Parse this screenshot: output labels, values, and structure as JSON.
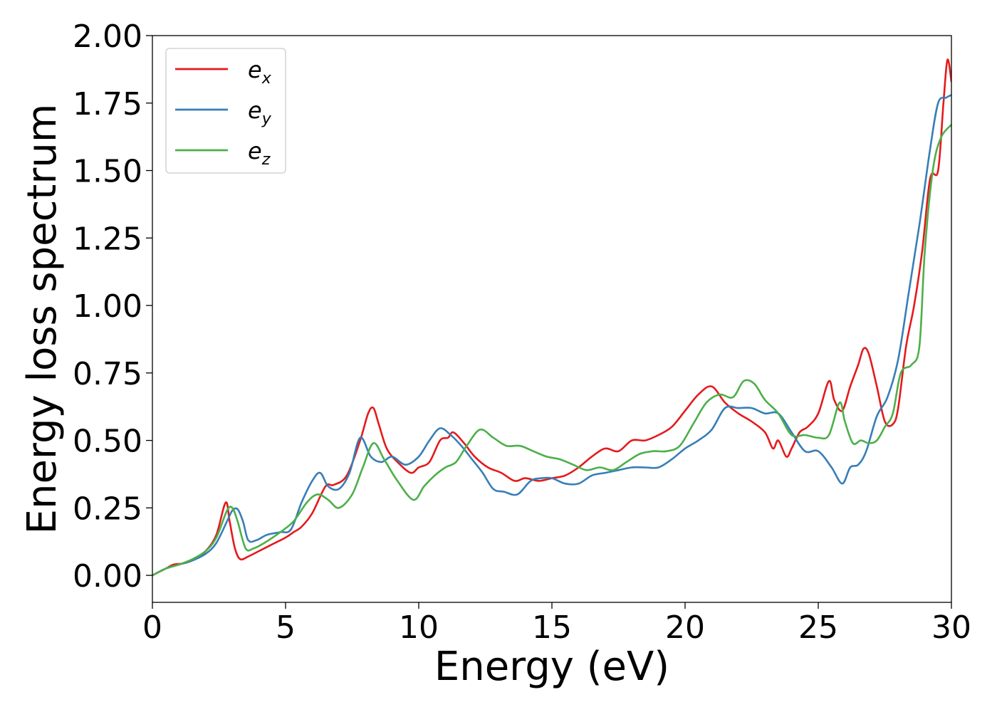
{
  "chart_data": {
    "type": "line",
    "xlabel": "Energy (eV)",
    "ylabel": "Energy loss spectrum",
    "xlim": [
      0,
      30
    ],
    "ylim": [
      -0.1,
      2.0
    ],
    "xticks": [
      0,
      5,
      10,
      15,
      20,
      25,
      30
    ],
    "xtick_labels": [
      "0",
      "5",
      "10",
      "15",
      "20",
      "25",
      "30"
    ],
    "yticks": [
      0,
      0.25,
      0.5,
      0.75,
      1.0,
      1.25,
      1.5,
      1.75,
      2.0
    ],
    "ytick_labels": [
      "0.00",
      "0.25",
      "0.50",
      "0.75",
      "1.00",
      "1.25",
      "1.50",
      "1.75",
      "2.00"
    ],
    "grid": false,
    "legend_position": "top-left",
    "series": [
      {
        "name": "e_x",
        "legend_main": "e",
        "legend_sub": "x",
        "color": "#e41a1c",
        "x": [
          0,
          0.5,
          0.8,
          1.2,
          1.6,
          2.0,
          2.4,
          2.75,
          2.9,
          3.1,
          3.3,
          3.6,
          4.0,
          4.6,
          5.0,
          5.3,
          5.6,
          6.0,
          6.5,
          6.8,
          7.3,
          7.8,
          8.1,
          8.3,
          8.5,
          8.8,
          9.2,
          9.7,
          10.0,
          10.4,
          10.8,
          11.1,
          11.3,
          11.7,
          12.1,
          12.6,
          13.1,
          13.6,
          14.0,
          14.5,
          15.0,
          15.5,
          16.0,
          16.5,
          17.0,
          17.5,
          18.0,
          18.5,
          19.0,
          19.5,
          20.0,
          20.5,
          21.0,
          21.5,
          22.0,
          22.5,
          23.0,
          23.3,
          23.5,
          23.8,
          24.0,
          24.3,
          24.6,
          25.0,
          25.4,
          25.6,
          25.9,
          26.2,
          26.5,
          26.7,
          26.9,
          27.2,
          27.5,
          27.8,
          28.0,
          28.3,
          28.6,
          28.9,
          29.2,
          29.5,
          29.7,
          29.85,
          30.0
        ],
        "y": [
          0.0,
          0.025,
          0.04,
          0.045,
          0.06,
          0.09,
          0.15,
          0.27,
          0.2,
          0.1,
          0.06,
          0.07,
          0.09,
          0.12,
          0.14,
          0.16,
          0.18,
          0.23,
          0.33,
          0.335,
          0.37,
          0.5,
          0.6,
          0.62,
          0.56,
          0.47,
          0.42,
          0.38,
          0.4,
          0.42,
          0.5,
          0.51,
          0.53,
          0.49,
          0.44,
          0.4,
          0.38,
          0.35,
          0.36,
          0.35,
          0.36,
          0.37,
          0.4,
          0.44,
          0.47,
          0.46,
          0.5,
          0.5,
          0.52,
          0.55,
          0.61,
          0.67,
          0.7,
          0.64,
          0.6,
          0.57,
          0.53,
          0.47,
          0.5,
          0.44,
          0.47,
          0.53,
          0.55,
          0.6,
          0.72,
          0.65,
          0.61,
          0.7,
          0.78,
          0.84,
          0.82,
          0.7,
          0.57,
          0.56,
          0.62,
          0.85,
          1.0,
          1.2,
          1.47,
          1.5,
          1.75,
          1.91,
          1.83
        ]
      },
      {
        "name": "e_y",
        "legend_main": "e",
        "legend_sub": "y",
        "color": "#377eb8",
        "x": [
          0,
          0.5,
          1.0,
          1.5,
          2.0,
          2.4,
          2.8,
          3.0,
          3.2,
          3.4,
          3.6,
          3.9,
          4.3,
          4.8,
          5.2,
          5.6,
          6.0,
          6.3,
          6.6,
          7.0,
          7.4,
          7.8,
          8.2,
          8.6,
          9.0,
          9.5,
          10.0,
          10.4,
          10.8,
          11.2,
          11.6,
          12.0,
          12.4,
          12.8,
          13.2,
          13.7,
          14.2,
          14.6,
          15.0,
          15.5,
          16.0,
          16.5,
          17.0,
          17.5,
          18.0,
          18.5,
          19.0,
          19.5,
          20.0,
          20.5,
          21.0,
          21.5,
          22.0,
          22.5,
          23.0,
          23.5,
          24.0,
          24.5,
          25.0,
          25.5,
          25.9,
          26.2,
          26.5,
          26.8,
          27.2,
          27.6,
          28.0,
          28.4,
          28.8,
          29.2,
          29.5,
          29.8,
          30.0
        ],
        "y": [
          0.0,
          0.025,
          0.04,
          0.055,
          0.08,
          0.12,
          0.2,
          0.24,
          0.245,
          0.2,
          0.13,
          0.13,
          0.15,
          0.16,
          0.17,
          0.27,
          0.35,
          0.38,
          0.33,
          0.32,
          0.38,
          0.51,
          0.44,
          0.42,
          0.44,
          0.41,
          0.44,
          0.5,
          0.545,
          0.52,
          0.48,
          0.43,
          0.38,
          0.32,
          0.31,
          0.3,
          0.35,
          0.36,
          0.36,
          0.34,
          0.34,
          0.37,
          0.38,
          0.39,
          0.4,
          0.4,
          0.4,
          0.43,
          0.47,
          0.5,
          0.54,
          0.62,
          0.62,
          0.62,
          0.6,
          0.6,
          0.53,
          0.46,
          0.46,
          0.4,
          0.34,
          0.4,
          0.41,
          0.46,
          0.59,
          0.66,
          0.8,
          1.05,
          1.3,
          1.58,
          1.75,
          1.77,
          1.78
        ]
      },
      {
        "name": "e_z",
        "legend_main": "e",
        "legend_sub": "z",
        "color": "#4daf4a",
        "x": [
          0,
          0.5,
          1.0,
          1.5,
          2.0,
          2.4,
          2.8,
          3.0,
          3.2,
          3.5,
          3.8,
          4.2,
          4.8,
          5.3,
          5.8,
          6.2,
          6.6,
          7.0,
          7.5,
          7.9,
          8.3,
          8.7,
          9.2,
          9.8,
          10.2,
          10.6,
          11.0,
          11.4,
          11.8,
          12.3,
          12.8,
          13.3,
          13.8,
          14.3,
          14.8,
          15.3,
          15.8,
          16.3,
          16.8,
          17.3,
          17.8,
          18.3,
          18.8,
          19.3,
          19.8,
          20.3,
          20.8,
          21.3,
          21.8,
          22.2,
          22.6,
          23.0,
          23.5,
          24.0,
          24.5,
          25.0,
          25.4,
          25.8,
          26.0,
          26.3,
          26.6,
          26.9,
          27.2,
          27.5,
          27.8,
          28.1,
          28.5,
          28.8,
          29.0,
          29.3,
          29.6,
          30.0
        ],
        "y": [
          0.0,
          0.025,
          0.04,
          0.06,
          0.09,
          0.14,
          0.24,
          0.25,
          0.2,
          0.1,
          0.1,
          0.12,
          0.16,
          0.2,
          0.27,
          0.3,
          0.28,
          0.25,
          0.3,
          0.4,
          0.49,
          0.43,
          0.35,
          0.28,
          0.33,
          0.37,
          0.4,
          0.42,
          0.48,
          0.54,
          0.51,
          0.48,
          0.48,
          0.46,
          0.44,
          0.43,
          0.41,
          0.39,
          0.4,
          0.39,
          0.42,
          0.45,
          0.46,
          0.46,
          0.48,
          0.56,
          0.64,
          0.67,
          0.66,
          0.72,
          0.71,
          0.65,
          0.6,
          0.52,
          0.52,
          0.51,
          0.52,
          0.64,
          0.57,
          0.49,
          0.5,
          0.49,
          0.5,
          0.55,
          0.6,
          0.75,
          0.78,
          0.85,
          1.2,
          1.5,
          1.62,
          1.67
        ]
      }
    ]
  }
}
